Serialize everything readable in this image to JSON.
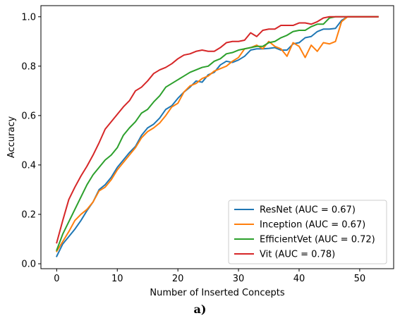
{
  "caption": "a)",
  "chart_data": {
    "type": "line",
    "xlabel": "Number of Inserted Concepts",
    "ylabel": "Accuracy",
    "xlim": [
      -2.6,
      55.6
    ],
    "ylim": [
      -0.02,
      1.045
    ],
    "xticks": [
      0,
      10,
      20,
      30,
      40,
      50
    ],
    "yticks": [
      0.0,
      0.2,
      0.4,
      0.6,
      0.8,
      1.0
    ],
    "grid": false,
    "legend_position": "lower-right",
    "series": [
      {
        "name": "ResNet (AUC = 0.67)",
        "color": "#1f77b4",
        "x": [
          0,
          1,
          2,
          3,
          4,
          5,
          6,
          7,
          8,
          9,
          10,
          11,
          12,
          13,
          14,
          15,
          16,
          17,
          18,
          19,
          20,
          21,
          22,
          23,
          24,
          25,
          26,
          27,
          28,
          29,
          30,
          31,
          32,
          33,
          34,
          35,
          36,
          37,
          38,
          39,
          40,
          41,
          42,
          43,
          44,
          45,
          46,
          47,
          48,
          49,
          50,
          51,
          52,
          53
        ],
        "values": [
          0.03,
          0.08,
          0.11,
          0.14,
          0.175,
          0.215,
          0.25,
          0.3,
          0.32,
          0.35,
          0.39,
          0.42,
          0.45,
          0.475,
          0.52,
          0.55,
          0.565,
          0.59,
          0.625,
          0.64,
          0.67,
          0.695,
          0.715,
          0.74,
          0.735,
          0.765,
          0.775,
          0.805,
          0.82,
          0.815,
          0.825,
          0.84,
          0.865,
          0.87,
          0.87,
          0.872,
          0.875,
          0.865,
          0.865,
          0.89,
          0.895,
          0.915,
          0.92,
          0.94,
          0.95,
          0.95,
          0.953,
          0.985,
          1.0,
          1.0,
          1.0,
          1.0,
          1.0,
          1.0
        ]
      },
      {
        "name": "Inception (AUC = 0.67)",
        "color": "#ff7f0e",
        "x": [
          0,
          1,
          2,
          3,
          4,
          5,
          6,
          7,
          8,
          9,
          10,
          11,
          12,
          13,
          14,
          15,
          16,
          17,
          18,
          19,
          20,
          21,
          22,
          23,
          24,
          25,
          26,
          27,
          28,
          29,
          30,
          31,
          32,
          33,
          34,
          35,
          36,
          37,
          38,
          39,
          40,
          41,
          42,
          43,
          44,
          45,
          46,
          47,
          48,
          49,
          50,
          51,
          52,
          53
        ],
        "values": [
          0.05,
          0.09,
          0.13,
          0.175,
          0.2,
          0.22,
          0.25,
          0.295,
          0.31,
          0.34,
          0.38,
          0.41,
          0.44,
          0.47,
          0.51,
          0.535,
          0.55,
          0.57,
          0.6,
          0.635,
          0.65,
          0.695,
          0.72,
          0.73,
          0.75,
          0.76,
          0.78,
          0.79,
          0.8,
          0.82,
          0.835,
          0.87,
          0.875,
          0.885,
          0.87,
          0.9,
          0.88,
          0.87,
          0.84,
          0.895,
          0.88,
          0.835,
          0.885,
          0.86,
          0.895,
          0.89,
          0.9,
          0.98,
          1.0,
          1.0,
          1.0,
          1.0,
          1.0,
          1.0
        ]
      },
      {
        "name": "EfficientVet (AUC = 0.72)",
        "color": "#2ca02c",
        "x": [
          0,
          1,
          2,
          3,
          4,
          5,
          6,
          7,
          8,
          9,
          10,
          11,
          12,
          13,
          14,
          15,
          16,
          17,
          18,
          19,
          20,
          21,
          22,
          23,
          24,
          25,
          26,
          27,
          28,
          29,
          30,
          31,
          32,
          33,
          34,
          35,
          36,
          37,
          38,
          39,
          40,
          41,
          42,
          43,
          44,
          45,
          46,
          47,
          48,
          49,
          50,
          51,
          52,
          53
        ],
        "values": [
          0.055,
          0.12,
          0.17,
          0.22,
          0.27,
          0.32,
          0.36,
          0.39,
          0.42,
          0.44,
          0.47,
          0.52,
          0.55,
          0.575,
          0.61,
          0.625,
          0.655,
          0.68,
          0.715,
          0.73,
          0.745,
          0.76,
          0.775,
          0.785,
          0.795,
          0.8,
          0.82,
          0.83,
          0.85,
          0.855,
          0.865,
          0.87,
          0.875,
          0.88,
          0.88,
          0.895,
          0.9,
          0.915,
          0.925,
          0.94,
          0.945,
          0.945,
          0.96,
          0.97,
          0.97,
          0.995,
          1.0,
          1.0,
          1.0,
          1.0,
          1.0,
          1.0,
          1.0,
          1.0
        ]
      },
      {
        "name": "Vit (AUC = 0.78)",
        "color": "#d62728",
        "x": [
          0,
          1,
          2,
          3,
          4,
          5,
          6,
          7,
          8,
          9,
          10,
          11,
          12,
          13,
          14,
          15,
          16,
          17,
          18,
          19,
          20,
          21,
          22,
          23,
          24,
          25,
          26,
          27,
          28,
          29,
          30,
          31,
          32,
          33,
          34,
          35,
          36,
          37,
          38,
          39,
          40,
          41,
          42,
          43,
          44,
          45,
          46,
          47,
          48,
          49,
          50,
          51,
          52,
          53
        ],
        "values": [
          0.085,
          0.175,
          0.26,
          0.31,
          0.355,
          0.395,
          0.44,
          0.49,
          0.545,
          0.575,
          0.605,
          0.635,
          0.66,
          0.7,
          0.715,
          0.74,
          0.77,
          0.785,
          0.795,
          0.81,
          0.83,
          0.845,
          0.85,
          0.86,
          0.865,
          0.86,
          0.86,
          0.875,
          0.895,
          0.9,
          0.9,
          0.905,
          0.935,
          0.92,
          0.945,
          0.95,
          0.95,
          0.965,
          0.965,
          0.965,
          0.975,
          0.975,
          0.97,
          0.98,
          0.995,
          1.0,
          1.0,
          1.0,
          1.0,
          1.0,
          1.0,
          1.0,
          1.0,
          1.0
        ]
      }
    ]
  }
}
